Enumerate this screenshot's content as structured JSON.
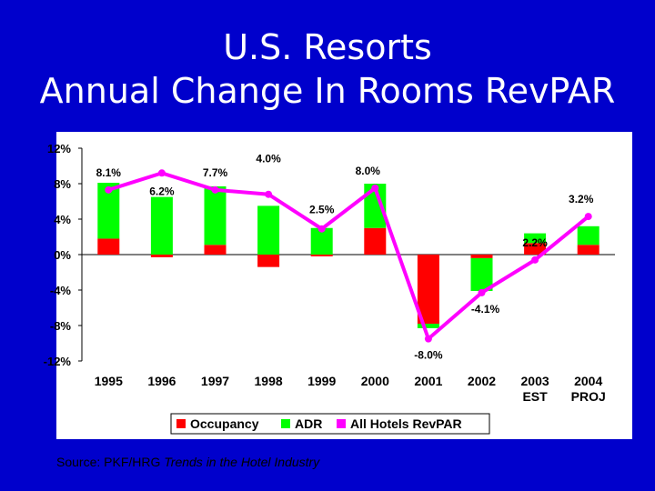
{
  "slide": {
    "title_line1": "U.S. Resorts",
    "title_line2": "Annual Change In Rooms RevPAR",
    "source_prefix": "Source: PKF/HRG ",
    "source_italic": "Trends in the Hotel Industry"
  },
  "colors": {
    "background": "#0000cc",
    "plot_area": "#ffffff",
    "occupancy": "#ff0000",
    "adr": "#00ff00",
    "revpar_line": "#ff00ff"
  },
  "chart_data": {
    "type": "bar",
    "stacked": true,
    "categories": [
      "1995",
      "1996",
      "1997",
      "1998",
      "1999",
      "2000",
      "2001",
      "2002",
      "2003\nEST",
      "2004\nPROJ"
    ],
    "series": [
      {
        "name": "Occupancy",
        "type": "bar",
        "values": [
          1.8,
          -0.3,
          1.1,
          -1.4,
          -0.2,
          3.0,
          -7.8,
          -0.4,
          1.3,
          1.1
        ]
      },
      {
        "name": "ADR",
        "type": "bar",
        "values": [
          6.3,
          6.5,
          6.6,
          5.5,
          3.0,
          5.0,
          -0.5,
          -3.7,
          1.1,
          2.1
        ]
      },
      {
        "name": "All Hotels RevPAR",
        "type": "line",
        "values": [
          7.3,
          9.2,
          7.3,
          6.8,
          2.9,
          7.5,
          -9.5,
          -4.3,
          -0.6,
          4.3
        ]
      }
    ],
    "data_labels": [
      "8.1%",
      "6.2%",
      "7.7%",
      "4.0%",
      "2.5%",
      "8.0%",
      "-8.0%",
      "-4.1%",
      "2.2%",
      "3.2%"
    ],
    "y_ticks": [
      "12%",
      "8%",
      "4%",
      "0%",
      "-4%",
      "-8%",
      "-12%"
    ],
    "ylim": [
      -12,
      12
    ],
    "grid": false,
    "legend_position": "bottom",
    "legend": [
      "Occupancy",
      "ADR",
      "All Hotels RevPAR"
    ]
  }
}
